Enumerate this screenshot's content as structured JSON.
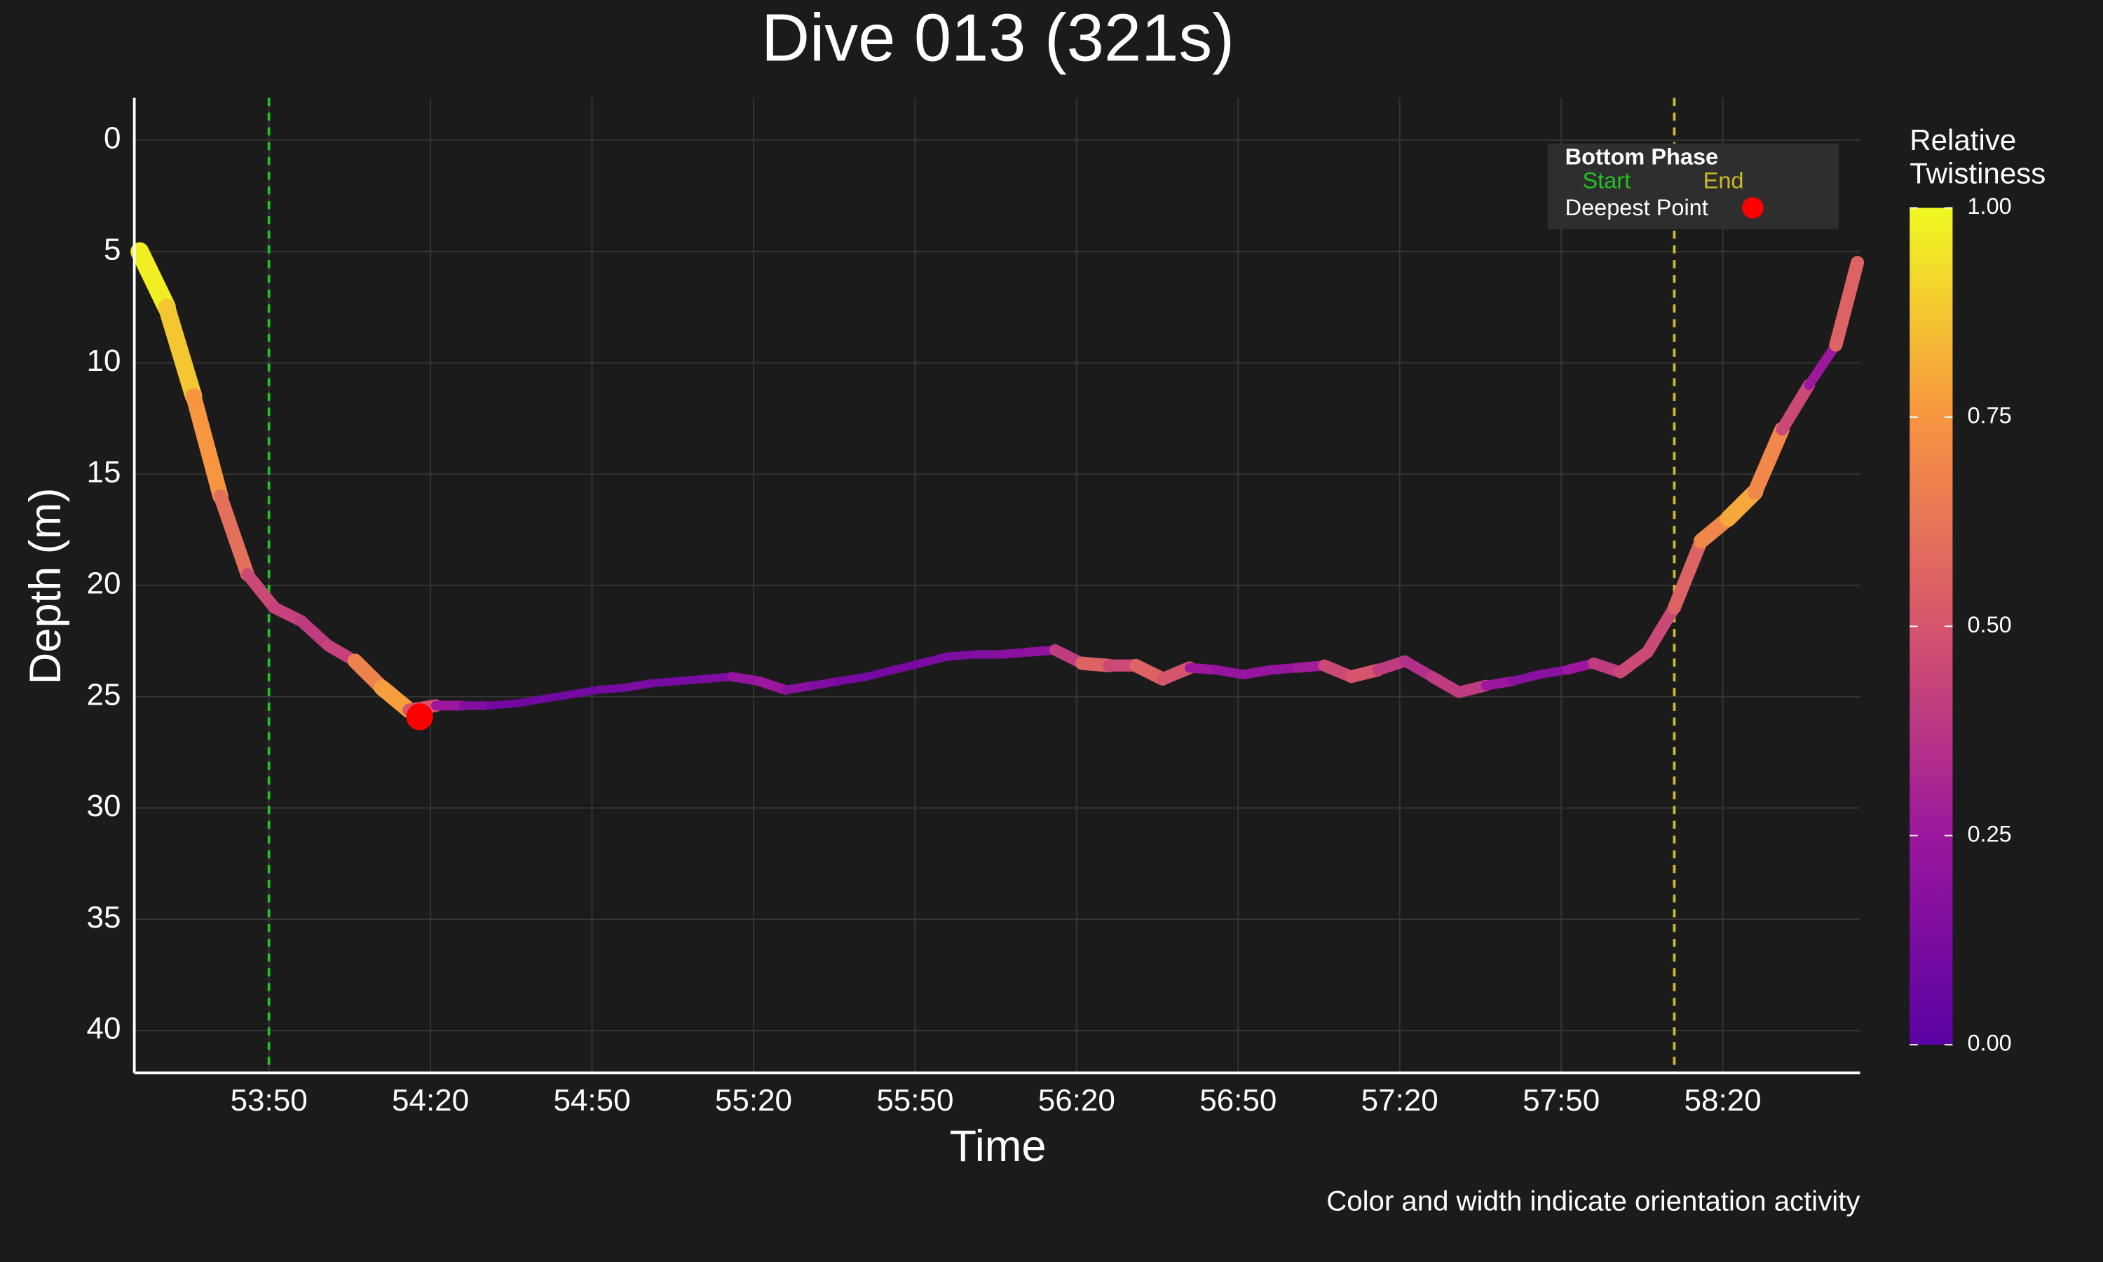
{
  "chart_data": {
    "type": "line",
    "title": "Dive 013 (321s)",
    "x_label": "Time",
    "y_label": "Depth (m)",
    "caption": "Color and width indicate orientation activity",
    "x": [
      3206,
      3211,
      3216,
      3221,
      3226,
      3231,
      3236,
      3241,
      3246,
      3251,
      3256,
      3261,
      3266,
      3271,
      3276,
      3281,
      3286,
      3291,
      3296,
      3301,
      3306,
      3311,
      3316,
      3321,
      3326,
      3331,
      3336,
      3341,
      3346,
      3351,
      3356,
      3361,
      3366,
      3371,
      3376,
      3381,
      3386,
      3391,
      3396,
      3401,
      3406,
      3411,
      3416,
      3421,
      3426,
      3431,
      3436,
      3441,
      3446,
      3451,
      3456,
      3461,
      3466,
      3471,
      3476,
      3481,
      3486,
      3491,
      3496,
      3501,
      3506,
      3511,
      3516,
      3521,
      3525
    ],
    "series": [
      {
        "name": "Depth",
        "values": [
          5.0,
          7.5,
          11.5,
          16.0,
          19.5,
          21.0,
          21.6,
          22.7,
          23.4,
          24.6,
          25.6,
          25.4,
          25.4,
          25.4,
          25.3,
          25.1,
          24.9,
          24.7,
          24.6,
          24.4,
          24.3,
          24.2,
          24.1,
          24.3,
          24.7,
          24.5,
          24.3,
          24.1,
          23.8,
          23.5,
          23.2,
          23.1,
          23.1,
          23.0,
          22.9,
          23.5,
          23.6,
          23.6,
          24.2,
          23.7,
          23.8,
          24.0,
          23.8,
          23.7,
          23.6,
          24.1,
          23.8,
          23.4,
          24.1,
          24.8,
          24.5,
          24.3,
          24.0,
          23.8,
          23.5,
          23.9,
          23.0,
          21.0,
          18.0,
          17.0,
          15.8,
          13.0,
          11.0,
          9.2,
          5.5
        ],
        "twistiness": [
          1.0,
          0.95,
          0.8,
          0.7,
          0.5,
          0.4,
          0.45,
          0.35,
          0.5,
          0.85,
          0.7,
          0.3,
          0.2,
          0.1,
          0.08,
          0.08,
          0.1,
          0.1,
          0.12,
          0.12,
          0.1,
          0.12,
          0.15,
          0.3,
          0.2,
          0.15,
          0.12,
          0.1,
          0.1,
          0.12,
          0.12,
          0.15,
          0.15,
          0.2,
          0.2,
          0.6,
          0.5,
          0.4,
          0.7,
          0.3,
          0.2,
          0.25,
          0.2,
          0.25,
          0.3,
          0.6,
          0.4,
          0.4,
          0.3,
          0.5,
          0.3,
          0.2,
          0.15,
          0.2,
          0.3,
          0.5,
          0.4,
          0.5,
          0.6,
          0.8,
          0.8,
          0.6,
          0.3,
          0.2,
          0.9
        ]
      }
    ],
    "xlim": [
      3205,
      3525.5
    ],
    "ylim": [
      -1.9,
      41.9
    ],
    "invert_y": true,
    "xticks": [
      {
        "value": 3230,
        "label": "53:50"
      },
      {
        "value": 3260,
        "label": "54:20"
      },
      {
        "value": 3290,
        "label": "54:50"
      },
      {
        "value": 3320,
        "label": "55:20"
      },
      {
        "value": 3350,
        "label": "55:50"
      },
      {
        "value": 3380,
        "label": "56:20"
      },
      {
        "value": 3410,
        "label": "56:50"
      },
      {
        "value": 3440,
        "label": "57:20"
      },
      {
        "value": 3470,
        "label": "57:50"
      },
      {
        "value": 3500,
        "label": "58:20"
      }
    ],
    "yticks": [
      0,
      5,
      10,
      15,
      20,
      25,
      30,
      35,
      40
    ],
    "grid": true,
    "colorbar": {
      "title_lines": [
        "Relative",
        "Twistiness"
      ],
      "lim": [
        0,
        1
      ],
      "ticks": [
        {
          "value": 0,
          "label": "0.00"
        },
        {
          "value": 0.25,
          "label": "0.25"
        },
        {
          "value": 0.5,
          "label": "0.50"
        },
        {
          "value": 0.75,
          "label": "0.75"
        },
        {
          "value": 1,
          "label": "1.00"
        }
      ],
      "colorscale": [
        "#5a02a4",
        "#9c179e",
        "#d6556d",
        "#f89540",
        "#f0f921"
      ]
    },
    "bottom_phase": {
      "label": "Bottom Phase",
      "start": 3230,
      "start_label": "Start",
      "start_color": "#22c022",
      "end": 3491,
      "end_label": "End",
      "end_color": "#c8b82a"
    },
    "deepest_point": {
      "label": "Deepest Point",
      "x": 3258,
      "y": 25.9,
      "color": "#ff0000"
    }
  }
}
